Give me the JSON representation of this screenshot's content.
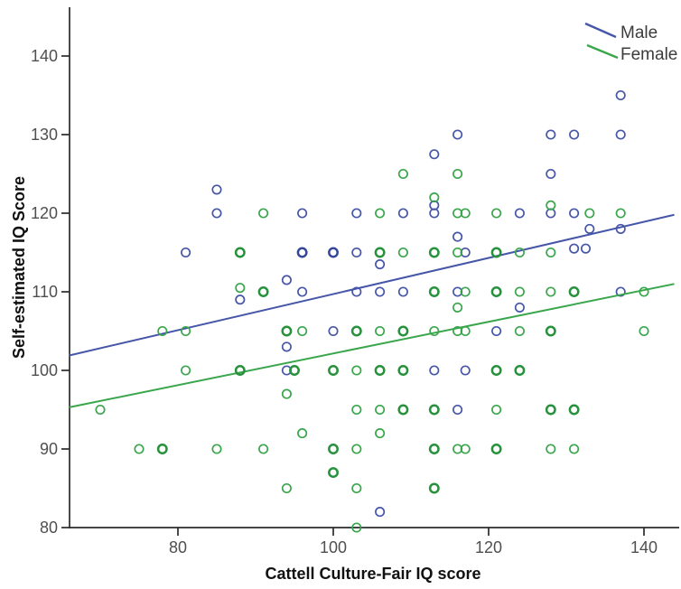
{
  "chart_data": {
    "type": "scatter",
    "title": "",
    "xlabel": "Cattell Culture-Fair IQ score",
    "ylabel": "Self-estimated IQ Score",
    "x_ticks": [
      80,
      100,
      120,
      140
    ],
    "y_ticks": [
      80,
      90,
      100,
      110,
      120,
      130,
      140
    ],
    "xlim": [
      66,
      144.8
    ],
    "ylim": [
      80,
      146.2
    ],
    "grid": false,
    "legend_position": "top-right",
    "legend": [
      {
        "label": "Male",
        "color": "#4656a8"
      },
      {
        "label": "Female",
        "color": "#3aa64c"
      }
    ],
    "series": [
      {
        "name": "Male",
        "marker": "open-circle",
        "color": "#4656a8",
        "color_bold": "#35479b",
        "trend_line": {
          "x1": 66,
          "y1": 101.9,
          "x2": 143.9,
          "y2": 119.8
        },
        "points": [
          [
            85,
            123
          ],
          [
            85,
            120
          ],
          [
            96,
            120
          ],
          [
            103,
            120
          ],
          [
            109,
            120
          ],
          [
            113,
            121
          ],
          [
            113,
            120
          ],
          [
            124,
            120
          ],
          [
            128,
            120
          ],
          [
            131,
            120
          ],
          [
            116,
            130
          ],
          [
            113,
            127.5
          ],
          [
            128,
            130
          ],
          [
            131,
            130
          ],
          [
            137,
            130
          ],
          [
            137,
            135
          ],
          [
            128,
            125
          ],
          [
            81,
            115
          ],
          [
            96,
            115,
            1
          ],
          [
            100,
            115,
            1
          ],
          [
            103,
            115
          ],
          [
            116,
            117
          ],
          [
            117,
            115
          ],
          [
            131,
            115.5
          ],
          [
            132.5,
            115.5
          ],
          [
            133,
            118
          ],
          [
            137,
            118
          ],
          [
            106,
            113.5
          ],
          [
            88,
            109
          ],
          [
            94,
            111.5
          ],
          [
            96,
            110
          ],
          [
            103,
            110
          ],
          [
            106,
            110
          ],
          [
            109,
            110
          ],
          [
            116,
            110
          ],
          [
            137,
            110
          ],
          [
            100,
            105
          ],
          [
            121,
            105
          ],
          [
            94,
            103
          ],
          [
            94,
            100
          ],
          [
            113,
            100
          ],
          [
            117,
            100
          ],
          [
            116,
            95
          ],
          [
            124,
            108
          ],
          [
            106,
            82
          ]
        ]
      },
      {
        "name": "Female",
        "marker": "open-circle",
        "color": "#3aa64c",
        "color_bold": "#27913c",
        "trend_line": {
          "x1": 66,
          "y1": 95.3,
          "x2": 143.9,
          "y2": 111.0
        },
        "points": [
          [
            91,
            120
          ],
          [
            106,
            120
          ],
          [
            116,
            120
          ],
          [
            117,
            120
          ],
          [
            121,
            120
          ],
          [
            133,
            120
          ],
          [
            137,
            120
          ],
          [
            113,
            122
          ],
          [
            128,
            121
          ],
          [
            109,
            125
          ],
          [
            116,
            125
          ],
          [
            88,
            115,
            1
          ],
          [
            106,
            115,
            1
          ],
          [
            109,
            115
          ],
          [
            113,
            115,
            1
          ],
          [
            116,
            115
          ],
          [
            121,
            115,
            1
          ],
          [
            124,
            115
          ],
          [
            128,
            115
          ],
          [
            88,
            110.5
          ],
          [
            91,
            110,
            1
          ],
          [
            113,
            110,
            1
          ],
          [
            117,
            110
          ],
          [
            121,
            110,
            1
          ],
          [
            124,
            110
          ],
          [
            128,
            110
          ],
          [
            131,
            110,
            1
          ],
          [
            140,
            110
          ],
          [
            116,
            108
          ],
          [
            78,
            105
          ],
          [
            81,
            105
          ],
          [
            94,
            105,
            1
          ],
          [
            96,
            105
          ],
          [
            103,
            105,
            1
          ],
          [
            106,
            105
          ],
          [
            109,
            105,
            1
          ],
          [
            113,
            105
          ],
          [
            116,
            105
          ],
          [
            117,
            105
          ],
          [
            124,
            105
          ],
          [
            128,
            105,
            1
          ],
          [
            140,
            105
          ],
          [
            70,
            95
          ],
          [
            81,
            100
          ],
          [
            88,
            100,
            1
          ],
          [
            95,
            100,
            1
          ],
          [
            100,
            100,
            1
          ],
          [
            103,
            100
          ],
          [
            106,
            100,
            1
          ],
          [
            109,
            100,
            1
          ],
          [
            121,
            100,
            1
          ],
          [
            124,
            100,
            1
          ],
          [
            94,
            97
          ],
          [
            103,
            95
          ],
          [
            106,
            95
          ],
          [
            109,
            95,
            1
          ],
          [
            113,
            95,
            1
          ],
          [
            121,
            95
          ],
          [
            128,
            95,
            1
          ],
          [
            131,
            95,
            1
          ],
          [
            96,
            92
          ],
          [
            106,
            92
          ],
          [
            75,
            90
          ],
          [
            78,
            90,
            1
          ],
          [
            85,
            90
          ],
          [
            91,
            90
          ],
          [
            100,
            90,
            1
          ],
          [
            103,
            90
          ],
          [
            113,
            90,
            1
          ],
          [
            116,
            90
          ],
          [
            117,
            90
          ],
          [
            121,
            90,
            1
          ],
          [
            128,
            90
          ],
          [
            131,
            90
          ],
          [
            100,
            87,
            1
          ],
          [
            94,
            85
          ],
          [
            103,
            85
          ],
          [
            113,
            85,
            1
          ],
          [
            103,
            80
          ]
        ]
      }
    ],
    "style": {
      "background": "#ffffff",
      "axis_color": "#2b2b2b",
      "tick_label_color": "#4f4f4f",
      "marker_radius": 4.7,
      "marker_stroke": 1.7,
      "marker_stroke_bold": 2.5,
      "trend_stroke": 2
    }
  }
}
